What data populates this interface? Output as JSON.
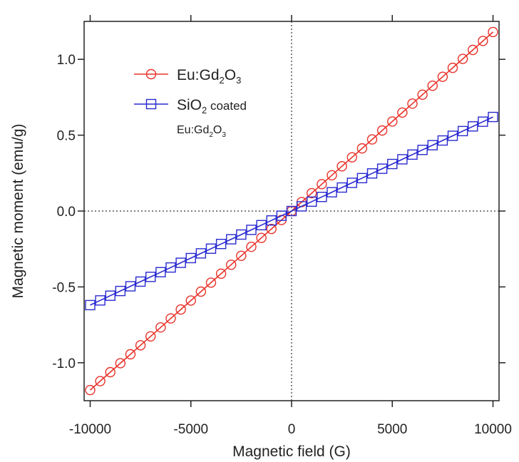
{
  "chart_data": {
    "type": "line",
    "xlabel": "Magnetic field (G)",
    "ylabel": "Magnetic moment (emu/g)",
    "xlim": [
      -10300,
      10300
    ],
    "ylim": [
      -1.25,
      1.25
    ],
    "x_ticks": [
      -10000,
      -5000,
      0,
      5000,
      10000
    ],
    "y_ticks": [
      -1.0,
      -0.5,
      0.0,
      0.5,
      1.0
    ],
    "x_tick_labels": [
      "-10000",
      "-5000",
      "0",
      "5000",
      "10000"
    ],
    "y_tick_labels": [
      "-1.0",
      "-0.5",
      "0.0",
      "0.5",
      "1.0"
    ],
    "grid": false,
    "zero_lines": true,
    "legend_position": "top-left",
    "x": [
      -10000,
      -9500,
      -9000,
      -8500,
      -8000,
      -7500,
      -7000,
      -6500,
      -6000,
      -5500,
      -5000,
      -4500,
      -4000,
      -3500,
      -3000,
      -2500,
      -2000,
      -1500,
      -1000,
      -500,
      0,
      500,
      1000,
      1500,
      2000,
      2500,
      3000,
      3500,
      4000,
      4500,
      5000,
      5500,
      6000,
      6500,
      7000,
      7500,
      8000,
      8500,
      9000,
      9500,
      10000
    ],
    "series": [
      {
        "legend_parts": [
          {
            "t": "Eu:Gd"
          },
          {
            "t": "2",
            "sub": true
          },
          {
            "t": "O"
          },
          {
            "t": "3",
            "sub": true
          }
        ],
        "marker": "circle",
        "color": "#e8322a",
        "values": [
          -1.18,
          -1.121,
          -1.062,
          -1.003,
          -0.944,
          -0.885,
          -0.826,
          -0.767,
          -0.708,
          -0.649,
          -0.59,
          -0.531,
          -0.472,
          -0.413,
          -0.354,
          -0.295,
          -0.236,
          -0.177,
          -0.118,
          -0.059,
          0.0,
          0.059,
          0.118,
          0.177,
          0.236,
          0.295,
          0.354,
          0.413,
          0.472,
          0.531,
          0.59,
          0.649,
          0.708,
          0.767,
          0.826,
          0.885,
          0.944,
          1.003,
          1.062,
          1.121,
          1.18
        ]
      },
      {
        "legend_parts": [
          {
            "t": "SiO"
          },
          {
            "t": "2",
            "sub": true
          },
          {
            "t": " coated",
            "small": true
          }
        ],
        "legend_line2": [
          {
            "t": "Eu:Gd"
          },
          {
            "t": "2",
            "sub": true
          },
          {
            "t": "O"
          },
          {
            "t": "3",
            "sub": true
          }
        ],
        "marker": "square",
        "color": "#2a2ad0",
        "values": [
          -0.62,
          -0.589,
          -0.558,
          -0.527,
          -0.496,
          -0.465,
          -0.434,
          -0.403,
          -0.372,
          -0.341,
          -0.31,
          -0.279,
          -0.248,
          -0.217,
          -0.186,
          -0.155,
          -0.124,
          -0.093,
          -0.062,
          -0.031,
          0.0,
          0.031,
          0.062,
          0.093,
          0.124,
          0.155,
          0.186,
          0.217,
          0.248,
          0.279,
          0.31,
          0.341,
          0.372,
          0.403,
          0.434,
          0.465,
          0.496,
          0.527,
          0.558,
          0.589,
          0.62
        ]
      }
    ]
  }
}
